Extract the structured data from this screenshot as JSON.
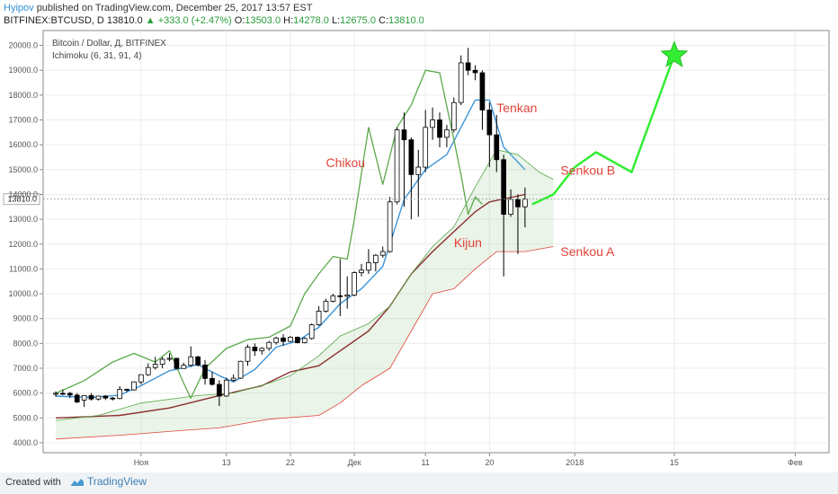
{
  "header": {
    "author": "Hyipov",
    "published_text": "published on TradingView.com, December 25, 2017 13:57 EST",
    "symbol": "BITFINEX:BTCUSD, D",
    "last": "13810.0",
    "change": "+333.0 (+2.47%)",
    "open_label": "O:",
    "open": "13503.0",
    "high_label": "H:",
    "high": "14278.0",
    "low_label": "L:",
    "low": "12675.0",
    "close_label": "C:",
    "close": "13810.0"
  },
  "footer": {
    "created_with": "Created with",
    "brand": "TradingView"
  },
  "colors": {
    "up": "#2a9d3c",
    "candle_up": "#ffffff",
    "candle_down": "#000000",
    "tenkan": "#3d95d8",
    "kijun": "#8b2e2e",
    "chikou": "#5aa84a",
    "senkou_a": "#e0443a",
    "senkou_b": "#5aa84a",
    "cloud": "#5aa84a",
    "annotation_label": "#e0443a",
    "forecast": "#33ee33",
    "axis_text": "#555555"
  },
  "chart_data": {
    "type": "candlestick",
    "title": "Bitcoin / Dollar, Д, BITFINEX",
    "indicator": "Ichimoku (6, 31, 91, 4)",
    "ylim": [
      3600,
      20600
    ],
    "y_ticks": [
      4000,
      5000,
      6000,
      7000,
      8000,
      9000,
      10000,
      11000,
      12000,
      13000,
      14000,
      15000,
      16000,
      17000,
      18000,
      19000,
      20000
    ],
    "y_tick_labels": [
      "4000.0",
      "5000.0",
      "6000.0",
      "7000.0",
      "8000.0",
      "9000.0",
      "10000.0",
      "11000.0",
      "12000.0",
      "13000.0",
      "14000.0",
      "15000.0",
      "16000.0",
      "17000.0",
      "18000.0",
      "19000.0",
      "20000.0"
    ],
    "last_price": 13810,
    "last_price_label": "13810.0",
    "x_start": "2017-10-20",
    "x_end": "2018-02-05",
    "x_ticks": [
      {
        "date": "2017-11-01",
        "label": "Ноя"
      },
      {
        "date": "2017-11-13",
        "label": "13"
      },
      {
        "date": "2017-11-22",
        "label": "22"
      },
      {
        "date": "2017-12-01",
        "label": "Дек"
      },
      {
        "date": "2017-12-11",
        "label": "11"
      },
      {
        "date": "2017-12-20",
        "label": "20"
      },
      {
        "date": "2018-01-01",
        "label": "2018"
      },
      {
        "date": "2018-01-15",
        "label": "15"
      },
      {
        "date": "2018-02-01",
        "label": "Фев"
      }
    ],
    "candles": [
      {
        "date": "2017-10-20",
        "o": 5990,
        "h": 6070,
        "l": 5850,
        "c": 5990
      },
      {
        "date": "2017-10-21",
        "o": 5990,
        "h": 6150,
        "l": 5920,
        "c": 5980
      },
      {
        "date": "2017-10-22",
        "o": 5990,
        "h": 6050,
        "l": 5800,
        "c": 5920
      },
      {
        "date": "2017-10-23",
        "o": 5920,
        "h": 6000,
        "l": 5600,
        "c": 5640
      },
      {
        "date": "2017-10-24",
        "o": 5720,
        "h": 5900,
        "l": 5440,
        "c": 5900
      },
      {
        "date": "2017-10-25",
        "o": 5900,
        "h": 6000,
        "l": 5700,
        "c": 5760
      },
      {
        "date": "2017-10-26",
        "o": 5760,
        "h": 5880,
        "l": 5700,
        "c": 5880
      },
      {
        "date": "2017-10-27",
        "o": 5880,
        "h": 5920,
        "l": 5720,
        "c": 5800
      },
      {
        "date": "2017-10-28",
        "o": 5800,
        "h": 5840,
        "l": 5700,
        "c": 5780
      },
      {
        "date": "2017-10-29",
        "o": 5780,
        "h": 6280,
        "l": 5750,
        "c": 6150
      },
      {
        "date": "2017-10-30",
        "o": 6150,
        "h": 6180,
        "l": 6050,
        "c": 6130
      },
      {
        "date": "2017-10-31",
        "o": 6130,
        "h": 6470,
        "l": 6100,
        "c": 6450
      },
      {
        "date": "2017-11-01",
        "o": 6450,
        "h": 6740,
        "l": 6350,
        "c": 6740
      },
      {
        "date": "2017-11-02",
        "o": 6740,
        "h": 7200,
        "l": 6690,
        "c": 7030
      },
      {
        "date": "2017-11-03",
        "o": 7030,
        "h": 7460,
        "l": 6950,
        "c": 7160
      },
      {
        "date": "2017-11-04",
        "o": 7160,
        "h": 7450,
        "l": 7000,
        "c": 7360
      },
      {
        "date": "2017-11-05",
        "o": 7360,
        "h": 7600,
        "l": 7280,
        "c": 7400
      },
      {
        "date": "2017-11-06",
        "o": 7400,
        "h": 7420,
        "l": 6950,
        "c": 6990
      },
      {
        "date": "2017-11-07",
        "o": 6990,
        "h": 7220,
        "l": 6980,
        "c": 7120
      },
      {
        "date": "2017-11-08",
        "o": 7120,
        "h": 7880,
        "l": 7050,
        "c": 7460
      },
      {
        "date": "2017-11-09",
        "o": 7460,
        "h": 7500,
        "l": 7070,
        "c": 7130
      },
      {
        "date": "2017-11-10",
        "o": 7130,
        "h": 7330,
        "l": 6340,
        "c": 6590
      },
      {
        "date": "2017-11-11",
        "o": 6590,
        "h": 6860,
        "l": 6300,
        "c": 6350
      },
      {
        "date": "2017-11-12",
        "o": 6350,
        "h": 6520,
        "l": 5480,
        "c": 5880
      },
      {
        "date": "2017-11-13",
        "o": 5880,
        "h": 6620,
        "l": 5850,
        "c": 6520
      },
      {
        "date": "2017-11-14",
        "o": 6520,
        "h": 6750,
        "l": 6450,
        "c": 6600
      },
      {
        "date": "2017-11-15",
        "o": 6600,
        "h": 7300,
        "l": 6570,
        "c": 7280
      },
      {
        "date": "2017-11-16",
        "o": 7280,
        "h": 7950,
        "l": 7100,
        "c": 7850
      },
      {
        "date": "2017-11-17",
        "o": 7850,
        "h": 8000,
        "l": 7500,
        "c": 7700
      },
      {
        "date": "2017-11-18",
        "o": 7700,
        "h": 7850,
        "l": 7550,
        "c": 7800
      },
      {
        "date": "2017-11-19",
        "o": 7800,
        "h": 8100,
        "l": 7700,
        "c": 8040
      },
      {
        "date": "2017-11-20",
        "o": 8040,
        "h": 8270,
        "l": 7950,
        "c": 8220
      },
      {
        "date": "2017-11-21",
        "o": 8220,
        "h": 8370,
        "l": 7900,
        "c": 8080
      },
      {
        "date": "2017-11-22",
        "o": 8080,
        "h": 8300,
        "l": 8050,
        "c": 8250
      },
      {
        "date": "2017-11-23",
        "o": 8250,
        "h": 8280,
        "l": 8000,
        "c": 8030
      },
      {
        "date": "2017-11-24",
        "o": 8030,
        "h": 8250,
        "l": 8000,
        "c": 8200
      },
      {
        "date": "2017-11-25",
        "o": 8200,
        "h": 8800,
        "l": 8150,
        "c": 8750
      },
      {
        "date": "2017-11-26",
        "o": 8750,
        "h": 9500,
        "l": 8700,
        "c": 9300
      },
      {
        "date": "2017-11-27",
        "o": 9300,
        "h": 9800,
        "l": 9250,
        "c": 9700
      },
      {
        "date": "2017-11-28",
        "o": 9700,
        "h": 10000,
        "l": 9650,
        "c": 9920
      },
      {
        "date": "2017-11-29",
        "o": 9920,
        "h": 11400,
        "l": 9100,
        "c": 9900
      },
      {
        "date": "2017-11-30",
        "o": 9900,
        "h": 10700,
        "l": 9400,
        "c": 9950
      },
      {
        "date": "2017-12-01",
        "o": 9950,
        "h": 10900,
        "l": 9900,
        "c": 10850
      },
      {
        "date": "2017-12-02",
        "o": 10850,
        "h": 11200,
        "l": 10700,
        "c": 10950
      },
      {
        "date": "2017-12-03",
        "o": 10950,
        "h": 11800,
        "l": 10800,
        "c": 11250
      },
      {
        "date": "2017-12-04",
        "o": 11250,
        "h": 11600,
        "l": 10900,
        "c": 11550
      },
      {
        "date": "2017-12-05",
        "o": 11550,
        "h": 11900,
        "l": 11450,
        "c": 11700
      },
      {
        "date": "2017-12-06",
        "o": 11700,
        "h": 13900,
        "l": 11650,
        "c": 13700
      },
      {
        "date": "2017-12-07",
        "o": 13700,
        "h": 16700,
        "l": 13600,
        "c": 16600
      },
      {
        "date": "2017-12-08",
        "o": 16600,
        "h": 17300,
        "l": 13500,
        "c": 16200
      },
      {
        "date": "2017-12-09",
        "o": 16200,
        "h": 16300,
        "l": 13000,
        "c": 14800
      },
      {
        "date": "2017-12-10",
        "o": 14800,
        "h": 15800,
        "l": 13100,
        "c": 15100
      },
      {
        "date": "2017-12-11",
        "o": 15100,
        "h": 17400,
        "l": 14900,
        "c": 16700
      },
      {
        "date": "2017-12-12",
        "o": 16700,
        "h": 17500,
        "l": 16200,
        "c": 17000
      },
      {
        "date": "2017-12-13",
        "o": 17000,
        "h": 17300,
        "l": 15900,
        "c": 16300
      },
      {
        "date": "2017-12-14",
        "o": 16300,
        "h": 16800,
        "l": 15900,
        "c": 16600
      },
      {
        "date": "2017-12-15",
        "o": 16600,
        "h": 17900,
        "l": 16500,
        "c": 17700
      },
      {
        "date": "2017-12-16",
        "o": 17700,
        "h": 19600,
        "l": 17600,
        "c": 19300
      },
      {
        "date": "2017-12-17",
        "o": 19300,
        "h": 19900,
        "l": 18800,
        "c": 19000
      },
      {
        "date": "2017-12-18",
        "o": 19000,
        "h": 19200,
        "l": 18600,
        "c": 18900
      },
      {
        "date": "2017-12-19",
        "o": 18900,
        "h": 19000,
        "l": 16600,
        "c": 17400
      },
      {
        "date": "2017-12-20",
        "o": 17400,
        "h": 17700,
        "l": 15100,
        "c": 16400
      },
      {
        "date": "2017-12-21",
        "o": 16400,
        "h": 17200,
        "l": 14900,
        "c": 15400
      },
      {
        "date": "2017-12-22",
        "o": 15400,
        "h": 15600,
        "l": 10700,
        "c": 13200
      },
      {
        "date": "2017-12-23",
        "o": 13200,
        "h": 14200,
        "l": 13100,
        "c": 13800
      },
      {
        "date": "2017-12-24",
        "o": 13800,
        "h": 14000,
        "l": 11600,
        "c": 13500
      },
      {
        "date": "2017-12-25",
        "o": 13503,
        "h": 14278,
        "l": 12675,
        "c": 13810
      }
    ],
    "series": [
      {
        "name": "Tenkan",
        "points": [
          [
            "2017-10-20",
            5880
          ],
          [
            "2017-10-25",
            5820
          ],
          [
            "2017-10-29",
            5920
          ],
          [
            "2017-11-01",
            6300
          ],
          [
            "2017-11-05",
            6900
          ],
          [
            "2017-11-09",
            7150
          ],
          [
            "2017-11-12",
            6700
          ],
          [
            "2017-11-14",
            6450
          ],
          [
            "2017-11-17",
            6950
          ],
          [
            "2017-11-20",
            7850
          ],
          [
            "2017-11-23",
            8100
          ],
          [
            "2017-11-26",
            8650
          ],
          [
            "2017-11-29",
            9600
          ],
          [
            "2017-12-02",
            10200
          ],
          [
            "2017-12-05",
            11100
          ],
          [
            "2017-12-08",
            13800
          ],
          [
            "2017-12-11",
            15000
          ],
          [
            "2017-12-14",
            15600
          ],
          [
            "2017-12-16",
            16700
          ],
          [
            "2017-12-18",
            17800
          ],
          [
            "2017-12-20",
            17800
          ],
          [
            "2017-12-22",
            15900
          ],
          [
            "2017-12-25",
            15000
          ]
        ]
      },
      {
        "name": "Kijun",
        "points": [
          [
            "2017-10-20",
            5000
          ],
          [
            "2017-10-29",
            5100
          ],
          [
            "2017-11-05",
            5400
          ],
          [
            "2017-11-12",
            5900
          ],
          [
            "2017-11-18",
            6300
          ],
          [
            "2017-11-22",
            6850
          ],
          [
            "2017-11-26",
            7100
          ],
          [
            "2017-11-29",
            7700
          ],
          [
            "2017-12-03",
            8500
          ],
          [
            "2017-12-06",
            9500
          ],
          [
            "2017-12-09",
            10800
          ],
          [
            "2017-12-12",
            11700
          ],
          [
            "2017-12-15",
            12500
          ],
          [
            "2017-12-18",
            13300
          ],
          [
            "2017-12-20",
            13700
          ],
          [
            "2017-12-25",
            14000
          ]
        ]
      },
      {
        "name": "Chikou",
        "points": [
          [
            "2017-10-20",
            5990
          ],
          [
            "2017-10-24",
            6500
          ],
          [
            "2017-10-28",
            7250
          ],
          [
            "2017-10-31",
            7600
          ],
          [
            "2017-11-03",
            7250
          ],
          [
            "2017-11-05",
            7700
          ],
          [
            "2017-11-07",
            6400
          ],
          [
            "2017-11-08",
            5800
          ],
          [
            "2017-11-10",
            7000
          ],
          [
            "2017-11-13",
            7800
          ],
          [
            "2017-11-16",
            8150
          ],
          [
            "2017-11-19",
            8250
          ],
          [
            "2017-11-22",
            8700
          ],
          [
            "2017-11-24",
            10000
          ],
          [
            "2017-11-26",
            10800
          ],
          [
            "2017-11-28",
            11500
          ],
          [
            "2017-11-30",
            11400
          ],
          [
            "2017-12-01",
            13000
          ],
          [
            "2017-12-03",
            16700
          ],
          [
            "2017-12-05",
            14400
          ],
          [
            "2017-12-07",
            16700
          ],
          [
            "2017-12-09",
            17600
          ],
          [
            "2017-12-11",
            19000
          ],
          [
            "2017-12-13",
            18900
          ],
          [
            "2017-12-15",
            16200
          ],
          [
            "2017-12-16",
            14800
          ],
          [
            "2017-12-17",
            13200
          ],
          [
            "2017-12-18",
            13900
          ],
          [
            "2017-12-19",
            13600
          ]
        ]
      },
      {
        "name": "Senkou A",
        "points": [
          [
            "2017-10-20",
            4150
          ],
          [
            "2017-10-29",
            4300
          ],
          [
            "2017-11-07",
            4500
          ],
          [
            "2017-11-12",
            4600
          ],
          [
            "2017-11-19",
            4950
          ],
          [
            "2017-11-26",
            5100
          ],
          [
            "2017-11-29",
            5600
          ],
          [
            "2017-12-02",
            6300
          ],
          [
            "2017-12-06",
            7000
          ],
          [
            "2017-12-09",
            8500
          ],
          [
            "2017-12-12",
            10000
          ],
          [
            "2017-12-15",
            10200
          ],
          [
            "2017-12-18",
            11000
          ],
          [
            "2017-12-21",
            11700
          ],
          [
            "2017-12-25",
            11700
          ],
          [
            "2017-12-29",
            11900
          ]
        ]
      },
      {
        "name": "Senkou B",
        "points": [
          [
            "2017-10-20",
            4900
          ],
          [
            "2017-10-26",
            5100
          ],
          [
            "2017-11-01",
            5600
          ],
          [
            "2017-11-09",
            5900
          ],
          [
            "2017-11-14",
            6000
          ],
          [
            "2017-11-19",
            6400
          ],
          [
            "2017-11-22",
            6700
          ],
          [
            "2017-11-26",
            7500
          ],
          [
            "2017-11-29",
            8300
          ],
          [
            "2017-12-03",
            8800
          ],
          [
            "2017-12-06",
            9500
          ],
          [
            "2017-12-09",
            10800
          ],
          [
            "2017-12-12",
            11900
          ],
          [
            "2017-12-15",
            12700
          ],
          [
            "2017-12-18",
            14300
          ],
          [
            "2017-12-21",
            15800
          ],
          [
            "2017-12-24",
            15600
          ],
          [
            "2017-12-27",
            14900
          ],
          [
            "2017-12-29",
            14600
          ]
        ]
      },
      {
        "name": "Forecast",
        "points": [
          [
            "2017-12-26",
            13600
          ],
          [
            "2017-12-29",
            14000
          ],
          [
            "2018-01-01",
            15100
          ],
          [
            "2018-01-04",
            15700
          ],
          [
            "2018-01-09",
            14900
          ],
          [
            "2018-01-15",
            19600
          ]
        ]
      }
    ],
    "target_marker": {
      "date": "2018-01-15",
      "value": 19600,
      "shape": "star"
    },
    "annotations": [
      {
        "text": "Tenkan",
        "date": "2017-12-21",
        "value": 17300
      },
      {
        "text": "Chikou",
        "date": "2017-11-27",
        "value": 15100
      },
      {
        "text": "Senkou B",
        "date": "2017-12-30",
        "value": 14800
      },
      {
        "text": "Kijun",
        "date": "2017-12-15",
        "value": 11880
      },
      {
        "text": "Senkou A",
        "date": "2017-12-30",
        "value": 11520
      }
    ]
  }
}
